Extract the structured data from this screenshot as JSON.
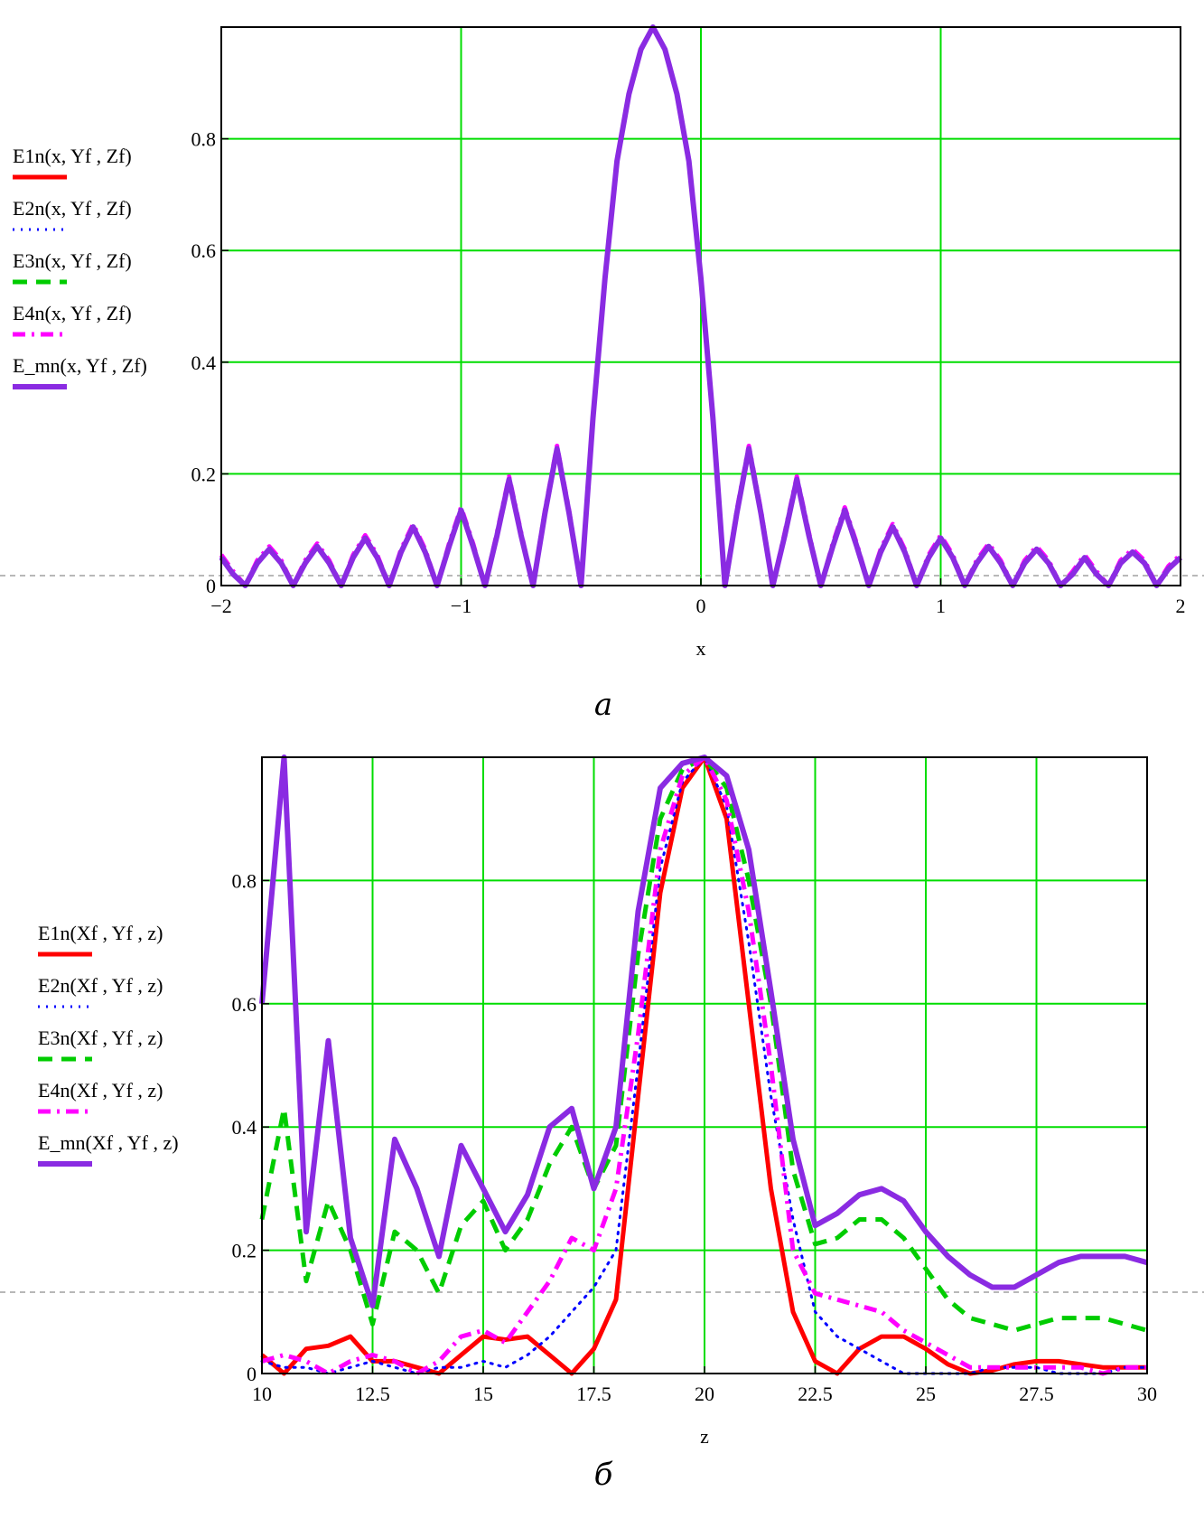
{
  "chart_data": [
    {
      "type": "line",
      "caption": "а",
      "xlabel": "x",
      "xlim": [
        -2,
        2
      ],
      "ylim": [
        0,
        1
      ],
      "xticks": [
        -2,
        -1,
        0,
        1,
        2
      ],
      "xtick_labels": [
        "−2",
        "−1",
        "0",
        "1",
        "2"
      ],
      "yticks": [
        0,
        0.2,
        0.4,
        0.6,
        0.8
      ],
      "ytick_labels": [
        "0",
        "0.2",
        "0.4",
        "0.6",
        "0.8"
      ],
      "grid": true,
      "legend_position": "left",
      "x": [
        -2.0,
        -1.95,
        -1.9,
        -1.85,
        -1.8,
        -1.75,
        -1.7,
        -1.65,
        -1.6,
        -1.55,
        -1.5,
        -1.45,
        -1.4,
        -1.35,
        -1.3,
        -1.25,
        -1.2,
        -1.15,
        -1.1,
        -1.05,
        -1.0,
        -0.95,
        -0.9,
        -0.85,
        -0.8,
        -0.75,
        -0.7,
        -0.65,
        -0.6,
        -0.55,
        -0.5,
        -0.45,
        -0.4,
        -0.35,
        -0.3,
        -0.25,
        -0.2,
        -0.15,
        -0.1,
        -0.05,
        0.0,
        0.05,
        0.1,
        0.15,
        0.2,
        0.25,
        0.3,
        0.35,
        0.4,
        0.45,
        0.5,
        0.55,
        0.6,
        0.65,
        0.7,
        0.75,
        0.8,
        0.85,
        0.9,
        0.95,
        1.0,
        1.05,
        1.1,
        1.15,
        1.2,
        1.25,
        1.3,
        1.35,
        1.4,
        1.45,
        1.5,
        1.55,
        1.6,
        1.65,
        1.7,
        1.75,
        1.8,
        1.85,
        1.9,
        1.95,
        2.0
      ],
      "series": [
        {
          "name": "E1n(x, Yf , Zf)",
          "color": "#ff0000",
          "style": "solid",
          "width": 5,
          "values": [
            0.05,
            0.02,
            0.0,
            0.04,
            0.065,
            0.04,
            0.0,
            0.04,
            0.07,
            0.04,
            0.0,
            0.05,
            0.085,
            0.05,
            0.0,
            0.06,
            0.105,
            0.06,
            0.0,
            0.07,
            0.135,
            0.07,
            0.0,
            0.09,
            0.19,
            0.09,
            0.0,
            0.13,
            0.245,
            0.13,
            0.0,
            0.3,
            0.55,
            0.76,
            0.88,
            0.96,
            1.0,
            0.96,
            0.88,
            0.76,
            0.55,
            0.3,
            0.0,
            0.13,
            0.245,
            0.13,
            0.0,
            0.09,
            0.19,
            0.09,
            0.0,
            0.07,
            0.135,
            0.07,
            0.0,
            0.06,
            0.105,
            0.06,
            0.0,
            0.05,
            0.085,
            0.05,
            0.0,
            0.04,
            0.07,
            0.04,
            0.0,
            0.04,
            0.065,
            0.04,
            0.0,
            0.02,
            0.05,
            0.02,
            0.0,
            0.04,
            0.06,
            0.04,
            0.0,
            0.03,
            0.05
          ]
        },
        {
          "name": "E2n(x, Yf , Zf)",
          "color": "#0000ff",
          "style": "dotted",
          "width": 3,
          "values": [
            0.05,
            0.02,
            0.0,
            0.04,
            0.065,
            0.04,
            0.0,
            0.04,
            0.07,
            0.04,
            0.0,
            0.05,
            0.085,
            0.05,
            0.0,
            0.06,
            0.105,
            0.06,
            0.0,
            0.07,
            0.135,
            0.07,
            0.0,
            0.09,
            0.19,
            0.09,
            0.0,
            0.13,
            0.245,
            0.13,
            0.0,
            0.3,
            0.55,
            0.76,
            0.88,
            0.96,
            1.0,
            0.96,
            0.88,
            0.76,
            0.55,
            0.3,
            0.0,
            0.13,
            0.245,
            0.13,
            0.0,
            0.09,
            0.19,
            0.09,
            0.0,
            0.07,
            0.135,
            0.07,
            0.0,
            0.06,
            0.105,
            0.06,
            0.0,
            0.05,
            0.085,
            0.05,
            0.0,
            0.04,
            0.07,
            0.04,
            0.0,
            0.04,
            0.065,
            0.04,
            0.0,
            0.02,
            0.05,
            0.02,
            0.0,
            0.04,
            0.06,
            0.04,
            0.0,
            0.03,
            0.05
          ]
        },
        {
          "name": "E3n(x, Yf , Zf)",
          "color": "#00cc00",
          "style": "dashed",
          "width": 5,
          "values": [
            0.05,
            0.02,
            0.0,
            0.04,
            0.065,
            0.04,
            0.0,
            0.04,
            0.07,
            0.04,
            0.0,
            0.05,
            0.085,
            0.05,
            0.0,
            0.06,
            0.105,
            0.06,
            0.0,
            0.07,
            0.135,
            0.07,
            0.0,
            0.09,
            0.19,
            0.09,
            0.0,
            0.13,
            0.245,
            0.13,
            0.0,
            0.3,
            0.55,
            0.76,
            0.88,
            0.96,
            1.0,
            0.96,
            0.88,
            0.76,
            0.55,
            0.3,
            0.0,
            0.13,
            0.245,
            0.13,
            0.0,
            0.09,
            0.19,
            0.09,
            0.0,
            0.07,
            0.135,
            0.07,
            0.0,
            0.06,
            0.105,
            0.06,
            0.0,
            0.05,
            0.085,
            0.05,
            0.0,
            0.04,
            0.07,
            0.04,
            0.0,
            0.04,
            0.065,
            0.04,
            0.0,
            0.02,
            0.05,
            0.02,
            0.0,
            0.04,
            0.06,
            0.04,
            0.0,
            0.03,
            0.05
          ]
        },
        {
          "name": "E4n(x, Yf , Zf)",
          "color": "#ff00ff",
          "style": "dashdot",
          "width": 5,
          "values": [
            0.055,
            0.025,
            0.0,
            0.045,
            0.07,
            0.045,
            0.0,
            0.045,
            0.075,
            0.045,
            0.0,
            0.055,
            0.09,
            0.055,
            0.0,
            0.065,
            0.11,
            0.065,
            0.0,
            0.075,
            0.14,
            0.075,
            0.0,
            0.095,
            0.195,
            0.095,
            0.0,
            0.135,
            0.25,
            0.135,
            0.0,
            0.3,
            0.55,
            0.76,
            0.88,
            0.96,
            1.0,
            0.96,
            0.88,
            0.76,
            0.55,
            0.3,
            0.0,
            0.135,
            0.25,
            0.135,
            0.0,
            0.095,
            0.195,
            0.095,
            0.0,
            0.075,
            0.14,
            0.075,
            0.0,
            0.065,
            0.11,
            0.065,
            0.0,
            0.055,
            0.09,
            0.055,
            0.0,
            0.045,
            0.075,
            0.045,
            0.0,
            0.045,
            0.07,
            0.045,
            0.0,
            0.025,
            0.055,
            0.025,
            0.0,
            0.045,
            0.065,
            0.045,
            0.0,
            0.035,
            0.055
          ]
        },
        {
          "name": "E_mn(x, Yf , Zf)",
          "color": "#8a2be2",
          "style": "solid",
          "width": 6,
          "values": [
            0.05,
            0.02,
            0.0,
            0.04,
            0.065,
            0.04,
            0.0,
            0.04,
            0.07,
            0.04,
            0.0,
            0.05,
            0.085,
            0.05,
            0.0,
            0.06,
            0.105,
            0.06,
            0.0,
            0.07,
            0.135,
            0.07,
            0.0,
            0.09,
            0.19,
            0.09,
            0.0,
            0.13,
            0.245,
            0.13,
            0.0,
            0.3,
            0.55,
            0.76,
            0.88,
            0.96,
            1.0,
            0.96,
            0.88,
            0.76,
            0.55,
            0.3,
            0.0,
            0.13,
            0.245,
            0.13,
            0.0,
            0.09,
            0.19,
            0.09,
            0.0,
            0.07,
            0.135,
            0.07,
            0.0,
            0.06,
            0.105,
            0.06,
            0.0,
            0.05,
            0.085,
            0.05,
            0.0,
            0.04,
            0.07,
            0.04,
            0.0,
            0.04,
            0.065,
            0.04,
            0.0,
            0.02,
            0.05,
            0.02,
            0.0,
            0.04,
            0.06,
            0.04,
            0.0,
            0.03,
            0.05
          ]
        }
      ]
    },
    {
      "type": "line",
      "caption": "б",
      "xlabel": "z",
      "xlim": [
        10,
        30
      ],
      "ylim": [
        0,
        1
      ],
      "xticks": [
        10,
        12.5,
        15,
        17.5,
        20,
        22.5,
        25,
        27.5,
        30
      ],
      "xtick_labels": [
        "10",
        "12.5",
        "15",
        "17.5",
        "20",
        "22.5",
        "25",
        "27.5",
        "30"
      ],
      "yticks": [
        0,
        0.2,
        0.4,
        0.6,
        0.8
      ],
      "ytick_labels": [
        "0",
        "0.2",
        "0.4",
        "0.6",
        "0.8"
      ],
      "grid": true,
      "legend_position": "left",
      "x": [
        10.0,
        10.5,
        11.0,
        11.5,
        12.0,
        12.5,
        13.0,
        13.5,
        14.0,
        14.5,
        15.0,
        15.5,
        16.0,
        16.5,
        17.0,
        17.5,
        18.0,
        18.5,
        19.0,
        19.5,
        20.0,
        20.5,
        21.0,
        21.5,
        22.0,
        22.5,
        23.0,
        23.5,
        24.0,
        24.5,
        25.0,
        25.5,
        26.0,
        26.5,
        27.0,
        27.5,
        28.0,
        28.5,
        29.0,
        29.5,
        30.0
      ],
      "series": [
        {
          "name": "E1n(Xf , Yf , z)",
          "color": "#ff0000",
          "style": "solid",
          "width": 5,
          "values": [
            0.03,
            0.0,
            0.04,
            0.045,
            0.06,
            0.02,
            0.02,
            0.01,
            0.0,
            0.03,
            0.06,
            0.055,
            0.06,
            0.03,
            0.0,
            0.04,
            0.12,
            0.45,
            0.78,
            0.95,
            1.0,
            0.9,
            0.6,
            0.3,
            0.1,
            0.02,
            0.0,
            0.04,
            0.06,
            0.06,
            0.04,
            0.015,
            0.0,
            0.005,
            0.015,
            0.02,
            0.02,
            0.015,
            0.01,
            0.01,
            0.01
          ]
        },
        {
          "name": "E2n(Xf , Yf , z)",
          "color": "#0000ff",
          "style": "dotted",
          "width": 3,
          "values": [
            0.02,
            0.01,
            0.01,
            0.0,
            0.01,
            0.02,
            0.01,
            0.0,
            0.01,
            0.01,
            0.02,
            0.01,
            0.03,
            0.06,
            0.1,
            0.14,
            0.2,
            0.5,
            0.82,
            0.96,
            1.0,
            0.92,
            0.7,
            0.45,
            0.25,
            0.1,
            0.06,
            0.04,
            0.02,
            0.0,
            0.0,
            0.0,
            0.0,
            0.01,
            0.01,
            0.01,
            0.0,
            0.0,
            0.0,
            0.01,
            0.01
          ]
        },
        {
          "name": "E3n(Xf , Yf , z)",
          "color": "#00cc00",
          "style": "dashed",
          "width": 5,
          "values": [
            0.25,
            0.43,
            0.15,
            0.28,
            0.2,
            0.08,
            0.23,
            0.2,
            0.13,
            0.24,
            0.28,
            0.2,
            0.25,
            0.34,
            0.4,
            0.3,
            0.37,
            0.68,
            0.9,
            0.98,
            1.0,
            0.95,
            0.8,
            0.6,
            0.33,
            0.21,
            0.22,
            0.25,
            0.25,
            0.22,
            0.17,
            0.12,
            0.09,
            0.08,
            0.07,
            0.08,
            0.09,
            0.09,
            0.09,
            0.08,
            0.07
          ]
        },
        {
          "name": "E4n(Xf , Yf , z)",
          "color": "#ff00ff",
          "style": "dashdot",
          "width": 5,
          "values": [
            0.02,
            0.03,
            0.02,
            0.0,
            0.02,
            0.03,
            0.02,
            0.0,
            0.02,
            0.06,
            0.07,
            0.05,
            0.1,
            0.15,
            0.22,
            0.2,
            0.3,
            0.55,
            0.85,
            0.97,
            1.0,
            0.93,
            0.75,
            0.5,
            0.2,
            0.13,
            0.12,
            0.11,
            0.1,
            0.07,
            0.05,
            0.03,
            0.01,
            0.01,
            0.01,
            0.01,
            0.01,
            0.01,
            0.0,
            0.01,
            0.01
          ]
        },
        {
          "name": "E_mn(Xf , Yf , z)",
          "color": "#8a2be2",
          "style": "solid",
          "width": 6,
          "values": [
            0.6,
            1.0,
            0.23,
            0.54,
            0.22,
            0.11,
            0.38,
            0.3,
            0.19,
            0.37,
            0.3,
            0.23,
            0.29,
            0.4,
            0.43,
            0.3,
            0.4,
            0.75,
            0.95,
            0.99,
            1.0,
            0.97,
            0.85,
            0.62,
            0.38,
            0.24,
            0.26,
            0.29,
            0.3,
            0.28,
            0.23,
            0.19,
            0.16,
            0.14,
            0.14,
            0.16,
            0.18,
            0.19,
            0.19,
            0.19,
            0.18
          ]
        }
      ]
    }
  ]
}
